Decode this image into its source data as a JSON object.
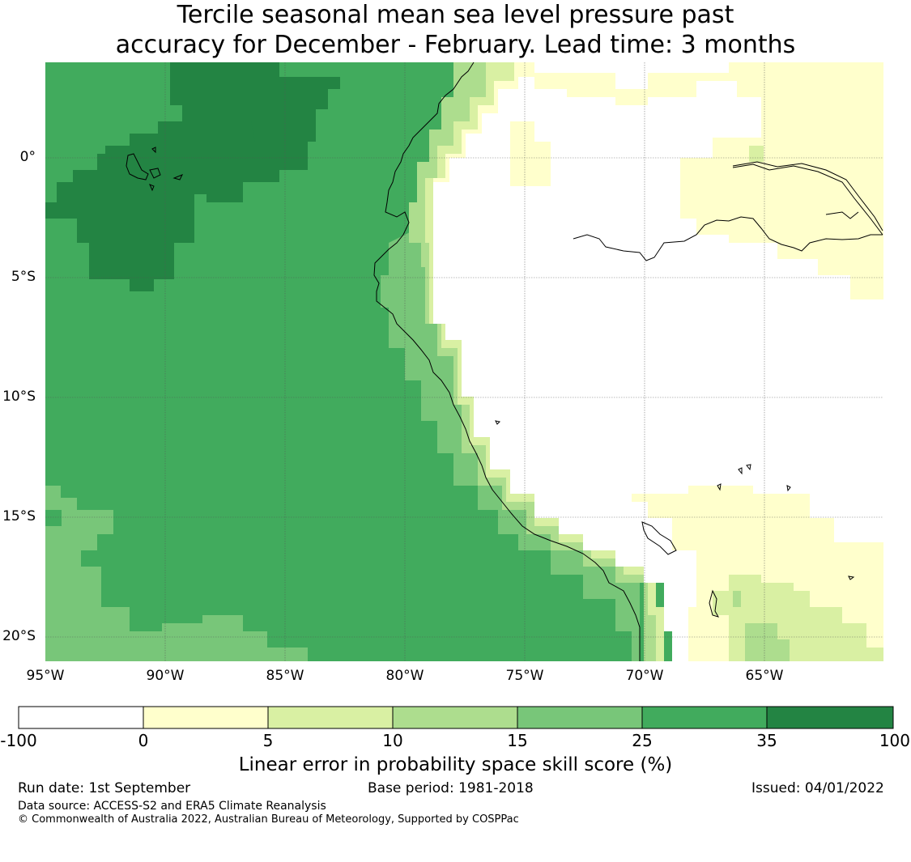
{
  "title": {
    "line1": "Tercile seasonal mean sea level pressure past",
    "line2": "accuracy for December - February. Lead time: 3 months"
  },
  "axes": {
    "lat_ticks": [
      "0°",
      "5°S",
      "10°S",
      "15°S",
      "20°S"
    ],
    "lon_ticks": [
      "95°W",
      "90°W",
      "85°W",
      "80°W",
      "75°W",
      "70°W",
      "65°W"
    ]
  },
  "colors": {
    "white": "#ffffff",
    "pale_yellow": "#ffffcc",
    "light_yellow_green": "#d9f0a3",
    "light_green": "#addd8e",
    "mid_green": "#78c679",
    "green": "#41ab5d",
    "dark_green": "#238443"
  },
  "colorbar": {
    "ticks": [
      "-100",
      "0",
      "5",
      "10",
      "15",
      "25",
      "35",
      "100"
    ],
    "label": "Linear error in probability space skill score (%)"
  },
  "footer": {
    "run_date": "Run date: 1st September",
    "base_period": "Base period: 1981-2018",
    "issued": "Issued: 04/01/2022",
    "data_source": "Data source: ACCESS-S2 and ERA5 Climate Reanalysis",
    "copyright": "© Commonwealth of Australia 2022, Australian Bureau of Meteorology, Supported by COSPPac"
  }
}
